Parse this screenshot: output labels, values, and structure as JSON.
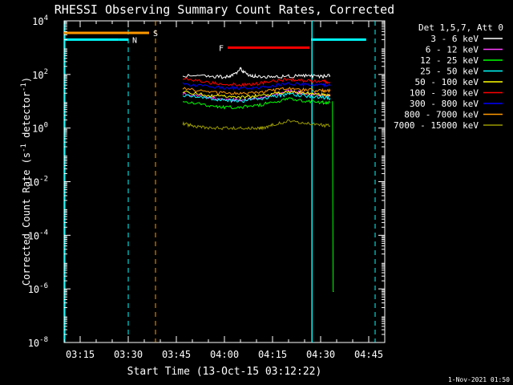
{
  "chart_data": {
    "type": "line",
    "title": "RHESSI Observing Summary Count Rates, Corrected",
    "xlabel": "Start Time (13-Oct-15 03:12:22)",
    "ylabel_main": "Corrected Count Rate (s",
    "ylabel_sup1": "-1",
    "ylabel_mid": " detector",
    "ylabel_sup2": "-1",
    "ylabel_end": ")",
    "x_unit": "minutes after 03:10 UT",
    "xlim": [
      0,
      100
    ],
    "ylim_exp": [
      -8,
      4
    ],
    "y_scale": "log",
    "x_ticks": [
      {
        "value": 5,
        "label": "03:15"
      },
      {
        "value": 20,
        "label": "03:30"
      },
      {
        "value": 35,
        "label": "03:45"
      },
      {
        "value": 50,
        "label": "04:00"
      },
      {
        "value": 65,
        "label": "04:15"
      },
      {
        "value": 80,
        "label": "04:30"
      },
      {
        "value": 95,
        "label": "04:45"
      }
    ],
    "y_ticks": [
      {
        "exp": 4,
        "base": "10",
        "sup": "4"
      },
      {
        "exp": 2,
        "base": "10",
        "sup": "2"
      },
      {
        "exp": 0,
        "base": "10",
        "sup": "0"
      },
      {
        "exp": -2,
        "base": "10",
        "sup": "-2"
      },
      {
        "exp": -4,
        "base": "10",
        "sup": "-4"
      },
      {
        "exp": -6,
        "base": "10",
        "sup": "-6"
      },
      {
        "exp": -8,
        "base": "10",
        "sup": "-8"
      }
    ],
    "legend": {
      "placement": "top-right-outside",
      "header": "Det 1,5,7, Att 0"
    },
    "series": [
      {
        "name": "3 - 6 keV",
        "color": "#ffffff",
        "x": [
          37,
          45,
          50,
          53,
          55,
          57,
          60,
          65,
          70,
          75,
          80,
          83
        ],
        "y": [
          90,
          85,
          80,
          100,
          160,
          100,
          85,
          80,
          85,
          90,
          85,
          90
        ]
      },
      {
        "name": "6 - 12 keV",
        "color": "#ff40ff",
        "x": [
          37,
          45,
          50,
          55,
          60,
          65,
          70,
          75,
          80,
          83
        ],
        "y": [
          20,
          14,
          12,
          11,
          13,
          17,
          24,
          20,
          17,
          16
        ]
      },
      {
        "name": "12 - 25 keV",
        "color": "#00ff00",
        "x": [
          37,
          45,
          50,
          55,
          60,
          65,
          70,
          75,
          80,
          83
        ],
        "y": [
          10,
          7,
          6,
          6,
          7,
          9,
          13,
          10,
          9,
          9
        ]
      },
      {
        "name": "25 - 50 keV",
        "color": "#00ffff",
        "x": [
          37,
          45,
          50,
          55,
          60,
          65,
          70,
          75,
          80,
          83
        ],
        "y": [
          17,
          13,
          11,
          10,
          12,
          15,
          18,
          16,
          14,
          13
        ]
      },
      {
        "name": "50 - 100 keV",
        "color": "#ffff00",
        "x": [
          37,
          45,
          50,
          55,
          60,
          65,
          70,
          75,
          80,
          83
        ],
        "y": [
          22,
          17,
          15,
          14,
          16,
          19,
          22,
          20,
          18,
          17
        ]
      },
      {
        "name": "100 - 300 keV",
        "color": "#ff0000",
        "x": [
          37,
          45,
          50,
          55,
          60,
          65,
          70,
          75,
          80,
          83
        ],
        "y": [
          70,
          50,
          45,
          40,
          45,
          55,
          65,
          58,
          55,
          52
        ]
      },
      {
        "name": "300 - 800 keV",
        "color": "#0000ff",
        "x": [
          37,
          45,
          50,
          55,
          60,
          65,
          70,
          75,
          80,
          83
        ],
        "y": [
          45,
          35,
          32,
          30,
          32,
          38,
          45,
          42,
          40,
          38
        ]
      },
      {
        "name": "800 - 7000 keV",
        "color": "#ff9900",
        "x": [
          37,
          45,
          50,
          55,
          60,
          65,
          70,
          75,
          80,
          83
        ],
        "y": [
          30,
          22,
          20,
          19,
          21,
          25,
          30,
          27,
          25,
          24
        ]
      },
      {
        "name": "7000 - 15000 keV",
        "color": "#999900",
        "x": [
          37,
          40,
          45,
          50,
          55,
          60,
          62,
          65,
          70,
          75,
          80,
          83
        ],
        "y": [
          1.5,
          1.2,
          1.0,
          1.0,
          1.0,
          1.0,
          1.0,
          1.3,
          1.8,
          1.5,
          1.3,
          1.2
        ]
      }
    ],
    "drop_series": {
      "color": "#00ff00",
      "x": [
        83.7,
        83.9,
        84.1
      ],
      "y_exp": [
        1,
        -6.1,
        -6.1
      ]
    },
    "markers": [
      {
        "label": "N",
        "color": "#00ffff",
        "dash_x": 20
      },
      {
        "label": "S",
        "color": "#ff9900",
        "dash_x": 28.5
      },
      {
        "label": "",
        "color": "#00ffff",
        "dash_x": 97
      }
    ],
    "bars": [
      {
        "label": "",
        "color": "#00ffff",
        "x0": 0,
        "x1": 17.2,
        "y_exp": 3.3,
        "thickness": 3
      },
      {
        "label": "N",
        "color": "#00ffff",
        "x0": 17.2,
        "x1": 20,
        "y_exp": 3.3,
        "thickness": 3
      },
      {
        "label": "S",
        "color": "#ff9900",
        "x0": 0,
        "x1": 26.5,
        "y_exp": 3.55,
        "thickness": 3
      },
      {
        "label": "F",
        "color": "#ff0000",
        "x0": 51,
        "x1": 76.5,
        "y_exp": 3.0,
        "thickness": 3
      },
      {
        "label": "",
        "color": "#00ffff",
        "x0": 77,
        "x1": 94.2,
        "y_exp": 3.3,
        "thickness": 3
      }
    ],
    "solid_vlines": [
      {
        "color": "#00ffff",
        "x": 0.2
      },
      {
        "color": "#00ffff",
        "x": 77.3
      }
    ]
  },
  "footer": {
    "date_stamp": "1-Nov-2021 01:50"
  }
}
